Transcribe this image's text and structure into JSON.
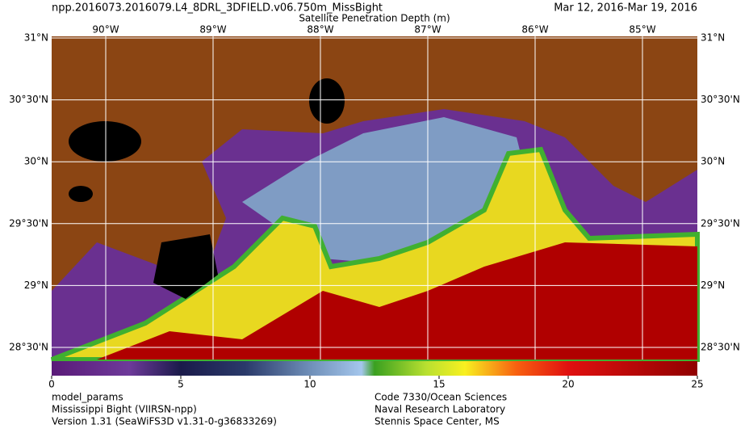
{
  "header": {
    "filename": "npp.2016073.2016079.L4_8DRL_3DFIELD.v06.750m_MissBight",
    "date_range": "Mar 12, 2016-Mar 19, 2016",
    "title": "Satellite Penetration Depth (m)"
  },
  "map": {
    "lon_labels": [
      "90°W",
      "89°W",
      "88°W",
      "87°W",
      "86°W",
      "85°W"
    ],
    "lat_labels": [
      "31°N",
      "30°30'N",
      "30°N",
      "29°30'N",
      "29°N",
      "28°30'N"
    ]
  },
  "colorbar": {
    "range": [
      0,
      25
    ],
    "ticks": [
      0,
      5,
      10,
      15,
      20,
      25
    ]
  },
  "footer": {
    "left": [
      "model_params",
      "Mississippi Bight (VIIRSN-npp)",
      "Version 1.31 (SeaWiFS3D v1.31-0-g36833269)"
    ],
    "right": [
      "Code 7330/Ocean Sciences",
      "Naval Research Laboratory",
      "Stennis Space Center, MS"
    ]
  }
}
